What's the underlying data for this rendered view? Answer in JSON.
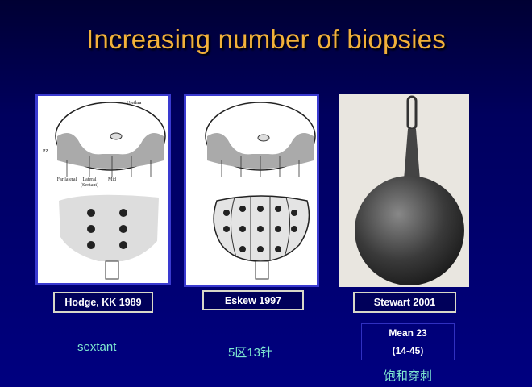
{
  "slide": {
    "title": "Increasing number of biopsies",
    "diagram_labels": {
      "urethra": "Urethra",
      "pz": "PZ",
      "far_lateral": "Far lateral",
      "lateral_sextant": "Lateral (Sextant)",
      "mid": "Mid"
    },
    "columns": [
      {
        "caption": "Hodge, KK 1989",
        "note": "sextant"
      },
      {
        "caption": "Eskew 1997",
        "note": "5区13针"
      },
      {
        "caption": "Stewart 2001",
        "mean_line1": "Mean 23",
        "mean_line2": "(14-45)",
        "note": "饱和穿刺"
      }
    ],
    "colors": {
      "title": "#f2b13a",
      "note": "#7fe8d0",
      "background": "#000080"
    }
  }
}
